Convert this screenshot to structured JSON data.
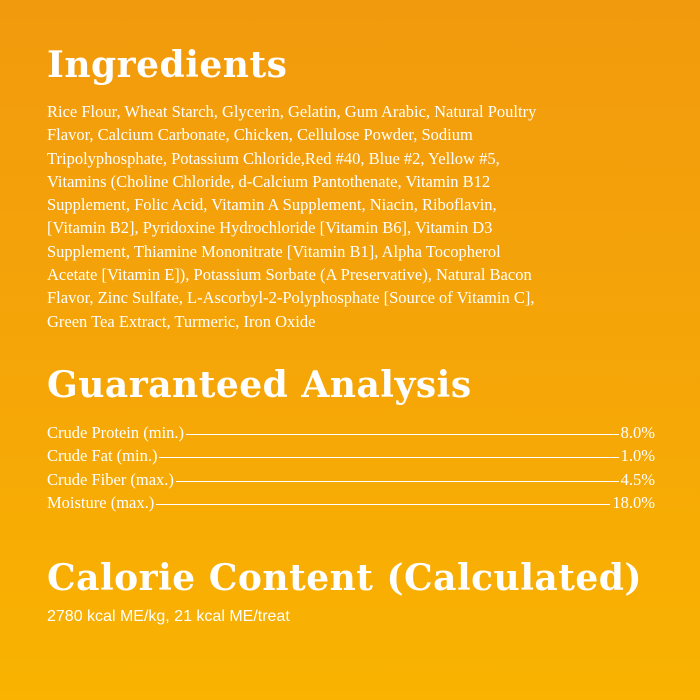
{
  "ingredients": {
    "title": "Ingredients",
    "lines": [
      "Rice Flour, Wheat Starch, Glycerin, Gelatin, Gum Arabic, Natural Poultry",
      "Flavor, Calcium Carbonate, Chicken, Cellulose Powder, Sodium",
      "Tripolyphosphate, Potassium Chloride,Red #40, Blue #2, Yellow #5,",
      "Vitamins  (Choline Chloride, d-Calcium Pantothenate, Vitamin B12",
      "Supplement, Folic Acid, Vitamin A Supplement, Niacin, Riboflavin,",
      "[Vitamin B2], Pyridoxine Hydrochloride [Vitamin B6], Vitamin D3",
      "Supplement, Thiamine Mononitrate [Vitamin B1], Alpha Tocopherol",
      "Acetate [Vitamin E]), Potassium Sorbate (A Preservative), Natural Bacon",
      "Flavor, Zinc Sulfate, L-Ascorbyl-2-Polyphosphate [Source of Vitamin C],",
      "Green Tea Extract, Turmeric, Iron Oxide"
    ]
  },
  "analysis": {
    "title": "Guaranteed Analysis",
    "rows": [
      {
        "label": "Crude Protein (min.)",
        "value": "8.0%"
      },
      {
        "label": "Crude Fat (min.)",
        "value": "1.0%"
      },
      {
        "label": "Crude Fiber (max.)",
        "value": "4.5%"
      },
      {
        "label": "Moisture (max.)",
        "value": "18.0%"
      }
    ]
  },
  "calorie": {
    "title": "Calorie Content (Calculated)",
    "text": "2780 kcal ME/kg, 21 kcal ME/treat"
  },
  "colors": {
    "background_top": "#f29a0d",
    "background_bottom": "#f9b300",
    "text": "#ffffff"
  }
}
